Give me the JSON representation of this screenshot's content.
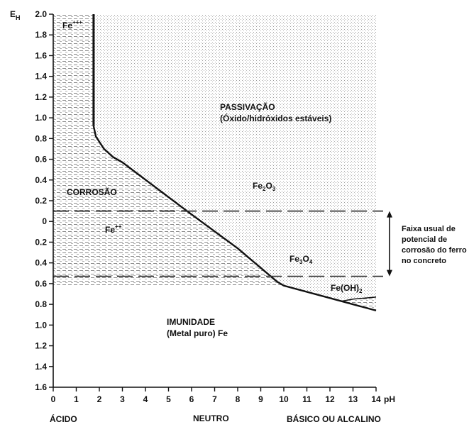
{
  "chart_data": {
    "type": "area",
    "title": "",
    "xlabel": "pH",
    "ylabel": "E",
    "ylabel_sub": "H",
    "xlim": [
      0,
      14
    ],
    "ylim_display": [
      2.0,
      1.6
    ],
    "x_ticks": [
      0,
      1,
      2,
      3,
      4,
      5,
      6,
      7,
      8,
      9,
      10,
      11,
      12,
      13,
      14
    ],
    "y_ticks": [
      {
        "label": "2.0",
        "pos": 2.0
      },
      {
        "label": "1.8",
        "pos": 1.8
      },
      {
        "label": "1.6",
        "pos": 1.6
      },
      {
        "label": "1.4",
        "pos": 1.4
      },
      {
        "label": "1.2",
        "pos": 1.2
      },
      {
        "label": "1.0",
        "pos": 1.0
      },
      {
        "label": "0.8",
        "pos": 0.8
      },
      {
        "label": "0.6",
        "pos": 0.6
      },
      {
        "label": "0.4",
        "pos": 0.4
      },
      {
        "label": "0.2",
        "pos": 0.2
      },
      {
        "label": "0",
        "pos": 0.0
      },
      {
        "label": "0.2",
        "pos": -0.2
      },
      {
        "label": "0.4",
        "pos": -0.4
      },
      {
        "label": "0.6",
        "pos": -0.6
      },
      {
        "label": "0.8",
        "pos": -0.8
      },
      {
        "label": "1.0",
        "pos": -1.0
      },
      {
        "label": "1.2",
        "pos": -1.2
      },
      {
        "label": "1.4",
        "pos": -1.4
      },
      {
        "label": "1.6",
        "pos": -1.6
      }
    ],
    "boundaries": {
      "fe3_vertical": [
        [
          1.75,
          2.0
        ],
        [
          1.75,
          0.92
        ]
      ],
      "passivation_edge": [
        [
          1.75,
          0.92
        ],
        [
          1.85,
          0.82
        ],
        [
          2.2,
          0.7
        ],
        [
          2.6,
          0.62
        ],
        [
          3.0,
          0.57
        ],
        [
          5.8,
          0.1
        ],
        [
          8.0,
          -0.26
        ],
        [
          9.7,
          -0.58
        ],
        [
          10.0,
          -0.62
        ],
        [
          12.5,
          -0.77
        ],
        [
          14.0,
          -0.86
        ]
      ],
      "fe3o4_feoh2_edge": [
        [
          12.5,
          -0.77
        ],
        [
          13.0,
          -0.75
        ],
        [
          14.0,
          -0.73
        ]
      ],
      "immunity_top": -0.62
    },
    "reference_lines": [
      0.1,
      -0.53
    ],
    "regions": [
      {
        "label": "CORROSÃO"
      },
      {
        "label": "PASSIVAÇÃO",
        "sublabel": "(Óxido/hidróxidos estáveis)"
      },
      {
        "label": "IMUNIDADE",
        "sublabel": "(Metal puro) Fe"
      }
    ],
    "species": [
      {
        "base": "Fe",
        "sup": "+++"
      },
      {
        "base": "Fe",
        "sup": "++"
      },
      {
        "base": "Fe",
        "sub1": "2",
        "mid": "O",
        "sub2": "3"
      },
      {
        "base": "Fe",
        "sub1": "3",
        "mid": "O",
        "sub2": "4"
      },
      {
        "base": "Fe(OH)",
        "sub1": "2"
      }
    ],
    "annotation": [
      "Faixa usual de",
      "potencial de",
      "corrosão do ferro",
      "no concreto"
    ],
    "categories_below": [
      "ÁCIDO",
      "NEUTRO",
      "BÁSICO OU ALCALINO"
    ],
    "colors": {
      "line": "#111111",
      "shade": "#c8c8c8",
      "text": "#111111"
    }
  }
}
